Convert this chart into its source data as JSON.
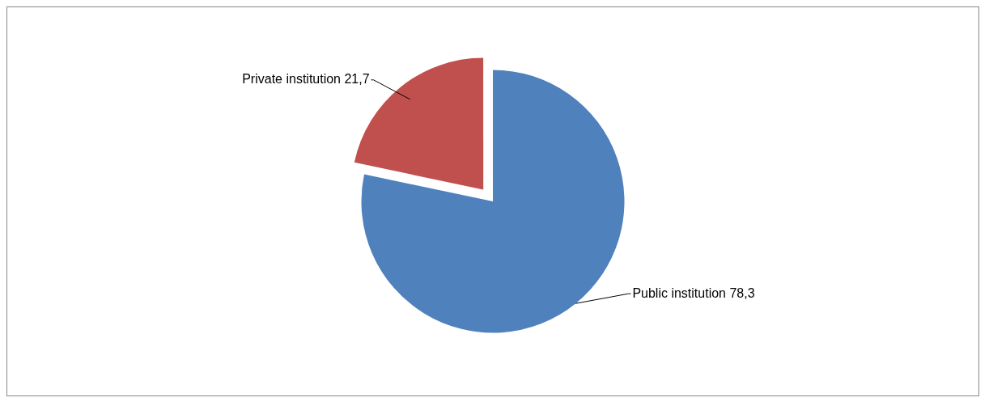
{
  "chart_data": {
    "type": "pie",
    "categories": [
      "Public institution",
      "Private institution"
    ],
    "values": [
      78.3,
      21.7
    ],
    "colors": [
      "#4f81bd",
      "#c0504d"
    ],
    "value_labels": [
      "78,3",
      "21,7"
    ],
    "legend": false
  }
}
